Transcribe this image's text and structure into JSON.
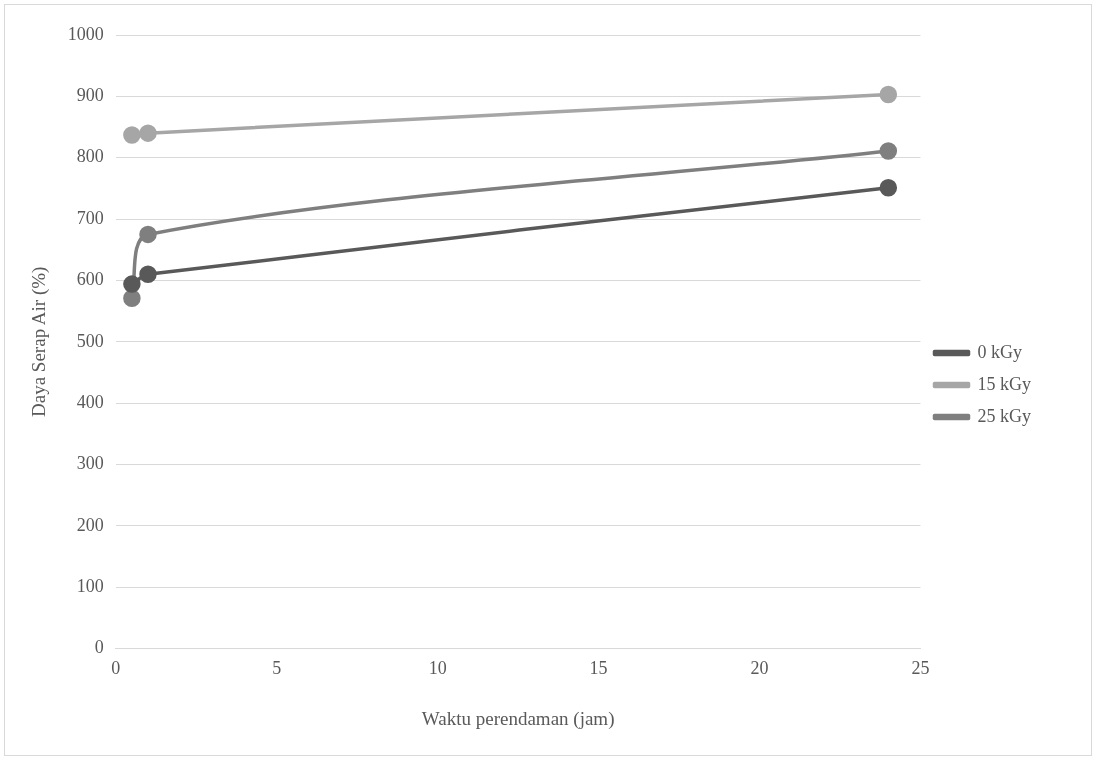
{
  "chart_data": {
    "type": "line",
    "xlabel": "Waktu perendaman (jam)",
    "ylabel": "Daya Serap Air (%)",
    "x": [
      0.5,
      1,
      24
    ],
    "series": [
      {
        "name": "0 kGy",
        "color": "#595959",
        "values": [
          594,
          610,
          751
        ]
      },
      {
        "name": "15 kGy",
        "color": "#a6a6a6",
        "values": [
          837,
          840,
          903
        ]
      },
      {
        "name": "25 kGy",
        "color": "#7f7f7f",
        "values": [
          571,
          675,
          811
        ]
      }
    ],
    "xlim": [
      0,
      25
    ],
    "xticks": [
      0,
      5,
      10,
      15,
      20,
      25
    ],
    "ylim": [
      0,
      1000
    ],
    "yticks": [
      0,
      100,
      200,
      300,
      400,
      500,
      600,
      700,
      800,
      900,
      1000
    ],
    "grid": "y",
    "legend": "right",
    "marker": "circle",
    "line_style": "solid"
  }
}
